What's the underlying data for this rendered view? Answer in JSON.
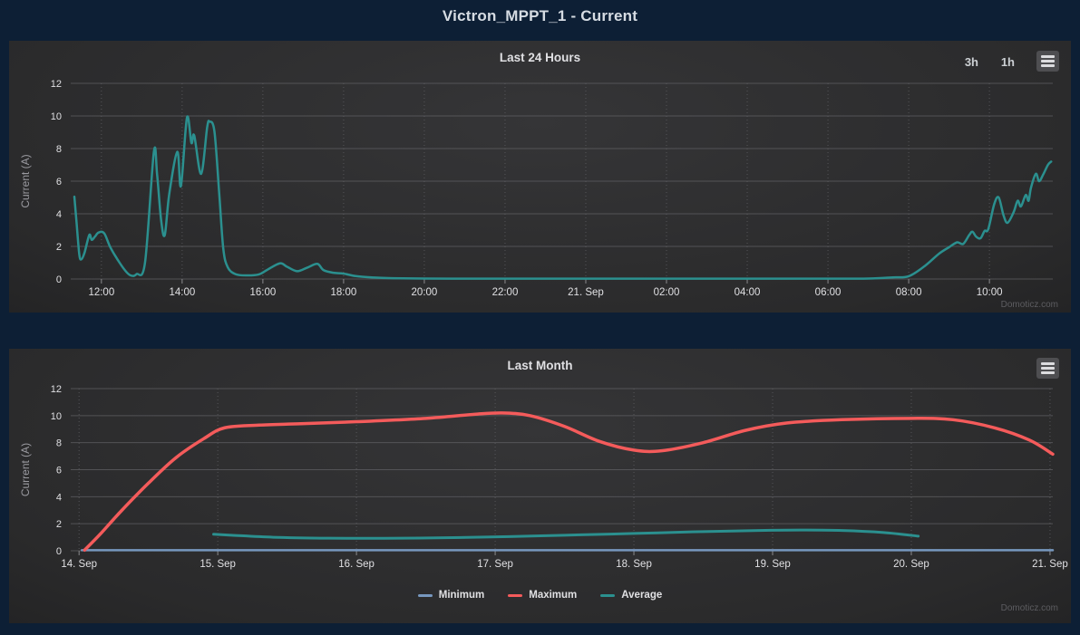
{
  "page": {
    "title": "Victron_MPPT_1 - Current",
    "credits": "Domoticz.com",
    "background_color": "#0d1f35",
    "panel_color": "#2b2b2c"
  },
  "ui": {
    "range_buttons": [
      {
        "label": "3h"
      },
      {
        "label": "1h"
      }
    ],
    "menu_icon": "hamburger-menu-icon"
  },
  "colors": {
    "teal": "#2b908f",
    "red": "#f45b5b",
    "blue": "#7798bf",
    "grid": "#5f5f63",
    "tick_label": "#e0e0e3",
    "axis_title": "#9a9aa0"
  },
  "chart_data": [
    {
      "type": "line",
      "title": "Last 24 Hours",
      "xlabel": "",
      "ylabel": "Current (A)",
      "ylim": [
        0,
        12
      ],
      "y_ticks": [
        0,
        2,
        4,
        6,
        8,
        10,
        12
      ],
      "x_domain": [
        11.24,
        35.57
      ],
      "x_unit": "hours (11:20 to 11:35 next day)",
      "grid": true,
      "legend_position": "none",
      "x_ticks": [
        {
          "v": 12,
          "label": "12:00"
        },
        {
          "v": 14,
          "label": "14:00"
        },
        {
          "v": 16,
          "label": "16:00"
        },
        {
          "v": 18,
          "label": "18:00"
        },
        {
          "v": 20,
          "label": "20:00"
        },
        {
          "v": 22,
          "label": "22:00"
        },
        {
          "v": 24,
          "label": "21. Sep"
        },
        {
          "v": 26,
          "label": "02:00"
        },
        {
          "v": 28,
          "label": "04:00"
        },
        {
          "v": 30,
          "label": "06:00"
        },
        {
          "v": 32,
          "label": "08:00"
        },
        {
          "v": 34,
          "label": "10:00"
        }
      ],
      "series": [
        {
          "name": "Current",
          "color": "#2b908f",
          "points": [
            [
              11.33,
              5.05
            ],
            [
              11.38,
              3.6
            ],
            [
              11.45,
              1.55
            ],
            [
              11.5,
              1.2
            ],
            [
              11.58,
              1.6
            ],
            [
              11.7,
              2.7
            ],
            [
              11.76,
              2.4
            ],
            [
              11.84,
              2.6
            ],
            [
              11.93,
              2.85
            ],
            [
              12.07,
              2.8
            ],
            [
              12.22,
              1.95
            ],
            [
              12.45,
              1.0
            ],
            [
              12.63,
              0.4
            ],
            [
              12.75,
              0.2
            ],
            [
              12.87,
              0.3
            ],
            [
              13.08,
              1.0
            ],
            [
              13.3,
              7.8
            ],
            [
              13.38,
              6.4
            ],
            [
              13.48,
              3.6
            ],
            [
              13.57,
              2.7
            ],
            [
              13.68,
              5.2
            ],
            [
              13.88,
              7.8
            ],
            [
              13.97,
              5.7
            ],
            [
              14.12,
              9.9
            ],
            [
              14.23,
              8.35
            ],
            [
              14.3,
              8.8
            ],
            [
              14.47,
              6.45
            ],
            [
              14.62,
              9.3
            ],
            [
              14.68,
              9.65
            ],
            [
              14.8,
              9.05
            ],
            [
              14.92,
              5.2
            ],
            [
              15.02,
              1.85
            ],
            [
              15.13,
              0.72
            ],
            [
              15.32,
              0.3
            ],
            [
              15.6,
              0.22
            ],
            [
              15.9,
              0.28
            ],
            [
              16.1,
              0.55
            ],
            [
              16.42,
              0.96
            ],
            [
              16.6,
              0.75
            ],
            [
              16.85,
              0.48
            ],
            [
              17.1,
              0.7
            ],
            [
              17.35,
              0.93
            ],
            [
              17.5,
              0.55
            ],
            [
              17.75,
              0.38
            ],
            [
              18.0,
              0.33
            ],
            [
              18.3,
              0.18
            ],
            [
              18.7,
              0.1
            ],
            [
              19.2,
              0.05
            ],
            [
              20.0,
              0.03
            ],
            [
              21.0,
              0.02
            ],
            [
              22.0,
              0.02
            ],
            [
              23.0,
              0.02
            ],
            [
              24.0,
              0.02
            ],
            [
              25.0,
              0.02
            ],
            [
              26.0,
              0.02
            ],
            [
              27.0,
              0.02
            ],
            [
              28.0,
              0.02
            ],
            [
              29.0,
              0.02
            ],
            [
              30.0,
              0.02
            ],
            [
              31.0,
              0.03
            ],
            [
              31.6,
              0.1
            ],
            [
              32.0,
              0.17
            ],
            [
              32.4,
              0.8
            ],
            [
              32.75,
              1.55
            ],
            [
              33.0,
              1.95
            ],
            [
              33.2,
              2.25
            ],
            [
              33.35,
              2.15
            ],
            [
              33.5,
              2.7
            ],
            [
              33.58,
              2.9
            ],
            [
              33.67,
              2.6
            ],
            [
              33.78,
              2.5
            ],
            [
              33.88,
              2.95
            ],
            [
              33.97,
              3.05
            ],
            [
              34.12,
              4.6
            ],
            [
              34.23,
              5.0
            ],
            [
              34.35,
              3.9
            ],
            [
              34.45,
              3.45
            ],
            [
              34.6,
              4.1
            ],
            [
              34.7,
              4.8
            ],
            [
              34.78,
              4.45
            ],
            [
              34.9,
              5.15
            ],
            [
              34.97,
              4.8
            ],
            [
              35.03,
              5.6
            ],
            [
              35.15,
              6.45
            ],
            [
              35.23,
              6.0
            ],
            [
              35.33,
              6.4
            ],
            [
              35.45,
              7.0
            ],
            [
              35.53,
              7.2
            ]
          ]
        }
      ]
    },
    {
      "type": "line",
      "title": "Last Month",
      "xlabel": "",
      "ylabel": "Current (A)",
      "ylim": [
        0,
        12
      ],
      "y_ticks": [
        0,
        2,
        4,
        6,
        8,
        10,
        12
      ],
      "x_domain": [
        13.94,
        21.02
      ],
      "x_unit": "day of September",
      "grid": true,
      "legend_position": "bottom",
      "x_ticks": [
        {
          "v": 14,
          "label": "14. Sep"
        },
        {
          "v": 15,
          "label": "15. Sep"
        },
        {
          "v": 16,
          "label": "16. Sep"
        },
        {
          "v": 17,
          "label": "17. Sep"
        },
        {
          "v": 18,
          "label": "18. Sep"
        },
        {
          "v": 19,
          "label": "19. Sep"
        },
        {
          "v": 20,
          "label": "20. Sep"
        },
        {
          "v": 21,
          "label": "21. Sep"
        }
      ],
      "series": [
        {
          "name": "Minimum",
          "color": "#7798bf",
          "points": [
            [
              14.02,
              0.04
            ],
            [
              16.0,
              0.04
            ],
            [
              18.0,
              0.04
            ],
            [
              20.0,
              0.04
            ],
            [
              21.02,
              0.04
            ]
          ]
        },
        {
          "name": "Maximum",
          "color": "#f45b5b",
          "points": [
            [
              14.04,
              0.05
            ],
            [
              14.15,
              1.2
            ],
            [
              14.3,
              2.9
            ],
            [
              14.5,
              5.0
            ],
            [
              14.7,
              6.9
            ],
            [
              14.9,
              8.3
            ],
            [
              15.05,
              9.1
            ],
            [
              15.3,
              9.3
            ],
            [
              15.6,
              9.4
            ],
            [
              16.0,
              9.55
            ],
            [
              16.5,
              9.8
            ],
            [
              16.85,
              10.1
            ],
            [
              17.05,
              10.2
            ],
            [
              17.25,
              10.0
            ],
            [
              17.5,
              9.2
            ],
            [
              17.75,
              8.1
            ],
            [
              18.0,
              7.45
            ],
            [
              18.2,
              7.4
            ],
            [
              18.5,
              8.0
            ],
            [
              18.8,
              8.9
            ],
            [
              19.1,
              9.45
            ],
            [
              19.5,
              9.7
            ],
            [
              20.0,
              9.8
            ],
            [
              20.3,
              9.7
            ],
            [
              20.6,
              9.1
            ],
            [
              20.85,
              8.2
            ],
            [
              21.02,
              7.15
            ]
          ]
        },
        {
          "name": "Average",
          "color": "#2b908f",
          "points": [
            [
              14.97,
              1.22
            ],
            [
              15.1,
              1.15
            ],
            [
              15.4,
              1.0
            ],
            [
              15.8,
              0.93
            ],
            [
              16.2,
              0.92
            ],
            [
              16.7,
              0.97
            ],
            [
              17.1,
              1.05
            ],
            [
              17.5,
              1.15
            ],
            [
              18.0,
              1.28
            ],
            [
              18.5,
              1.42
            ],
            [
              18.9,
              1.5
            ],
            [
              19.2,
              1.53
            ],
            [
              19.5,
              1.5
            ],
            [
              19.8,
              1.35
            ],
            [
              20.05,
              1.08
            ]
          ]
        }
      ]
    }
  ]
}
